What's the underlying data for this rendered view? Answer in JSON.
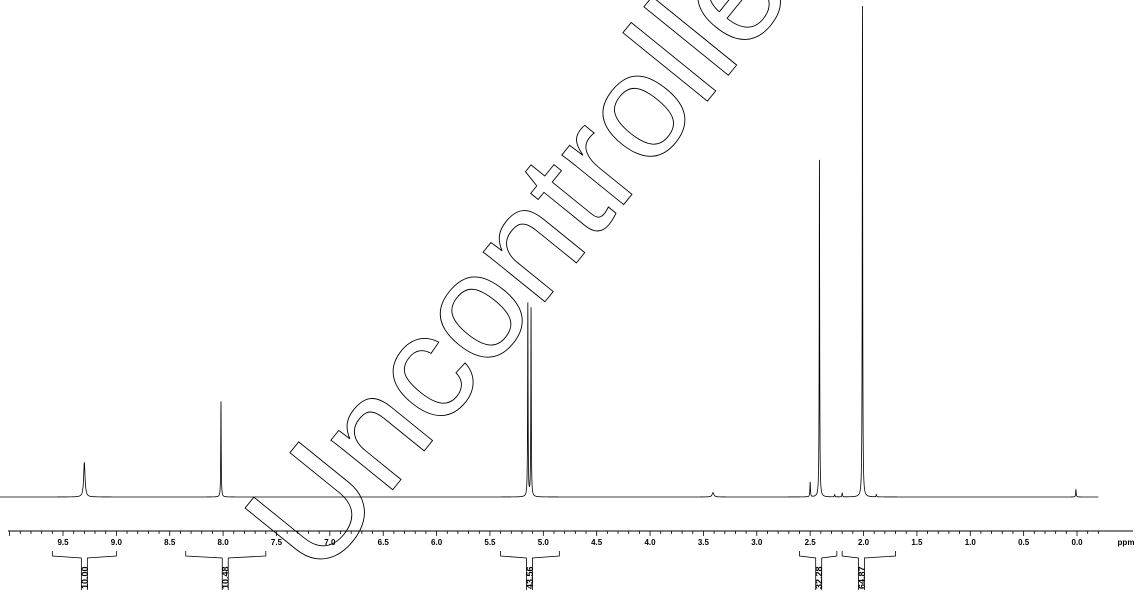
{
  "chart_data": {
    "type": "line",
    "title": "",
    "xlabel": "",
    "ylabel": "",
    "x_unit": "ppm",
    "xlim": [
      10.2,
      -0.2
    ],
    "x_reversed": true,
    "x_ticks": [
      9.5,
      9.0,
      8.5,
      8.0,
      7.5,
      7.0,
      6.5,
      6.0,
      5.5,
      5.0,
      4.5,
      4.0,
      3.5,
      3.0,
      2.5,
      2.0,
      1.5,
      1.0,
      0.5,
      0.0
    ],
    "x_tick_labels": [
      "9.5",
      "9.0",
      "8.5",
      "8.0",
      "7.5",
      "7.0",
      "6.5",
      "6.0",
      "5.5",
      "5.0",
      "4.5",
      "4.0",
      "3.5",
      "3.0",
      "2.5",
      "2.0",
      "1.5",
      "1.0",
      "0.5",
      "0.0"
    ],
    "y_range": [
      0,
      1.0
    ],
    "peaks": [
      {
        "ppm": 9.3,
        "height": 0.07,
        "width": 0.008
      },
      {
        "ppm": 8.02,
        "height": 0.195,
        "width": 0.0025
      },
      {
        "ppm": 5.145,
        "height": 0.395,
        "width": 0.0025
      },
      {
        "ppm": 5.115,
        "height": 0.385,
        "width": 0.0025
      },
      {
        "ppm": 3.41,
        "height": 0.009,
        "width": 0.01
      },
      {
        "ppm": 2.5,
        "height": 0.03,
        "width": 0.003
      },
      {
        "ppm": 2.413,
        "height": 0.69,
        "width": 0.0025
      },
      {
        "ppm": 2.27,
        "height": 0.005,
        "width": 0.003
      },
      {
        "ppm": 2.2,
        "height": 0.008,
        "width": 0.003
      },
      {
        "ppm": 2.01,
        "height": 1.0,
        "width": 0.0025
      },
      {
        "ppm": 1.88,
        "height": 0.005,
        "width": 0.003
      },
      {
        "ppm": 0.01,
        "height": 0.015,
        "width": 0.003
      }
    ],
    "integrals": [
      {
        "value": "10.00",
        "from": 9.6,
        "to": 9.0,
        "center": 9.3
      },
      {
        "value": "10.48",
        "from": 8.35,
        "to": 7.6,
        "center": 7.98
      },
      {
        "value": "43.56",
        "from": 5.4,
        "to": 4.85,
        "center": 5.13
      },
      {
        "value": "32.28",
        "from": 2.6,
        "to": 2.25,
        "center": 2.42
      },
      {
        "value": "64.87",
        "from": 2.2,
        "to": 1.7,
        "center": 2.02
      }
    ]
  },
  "watermark": {
    "text": "Uncontrolled"
  }
}
